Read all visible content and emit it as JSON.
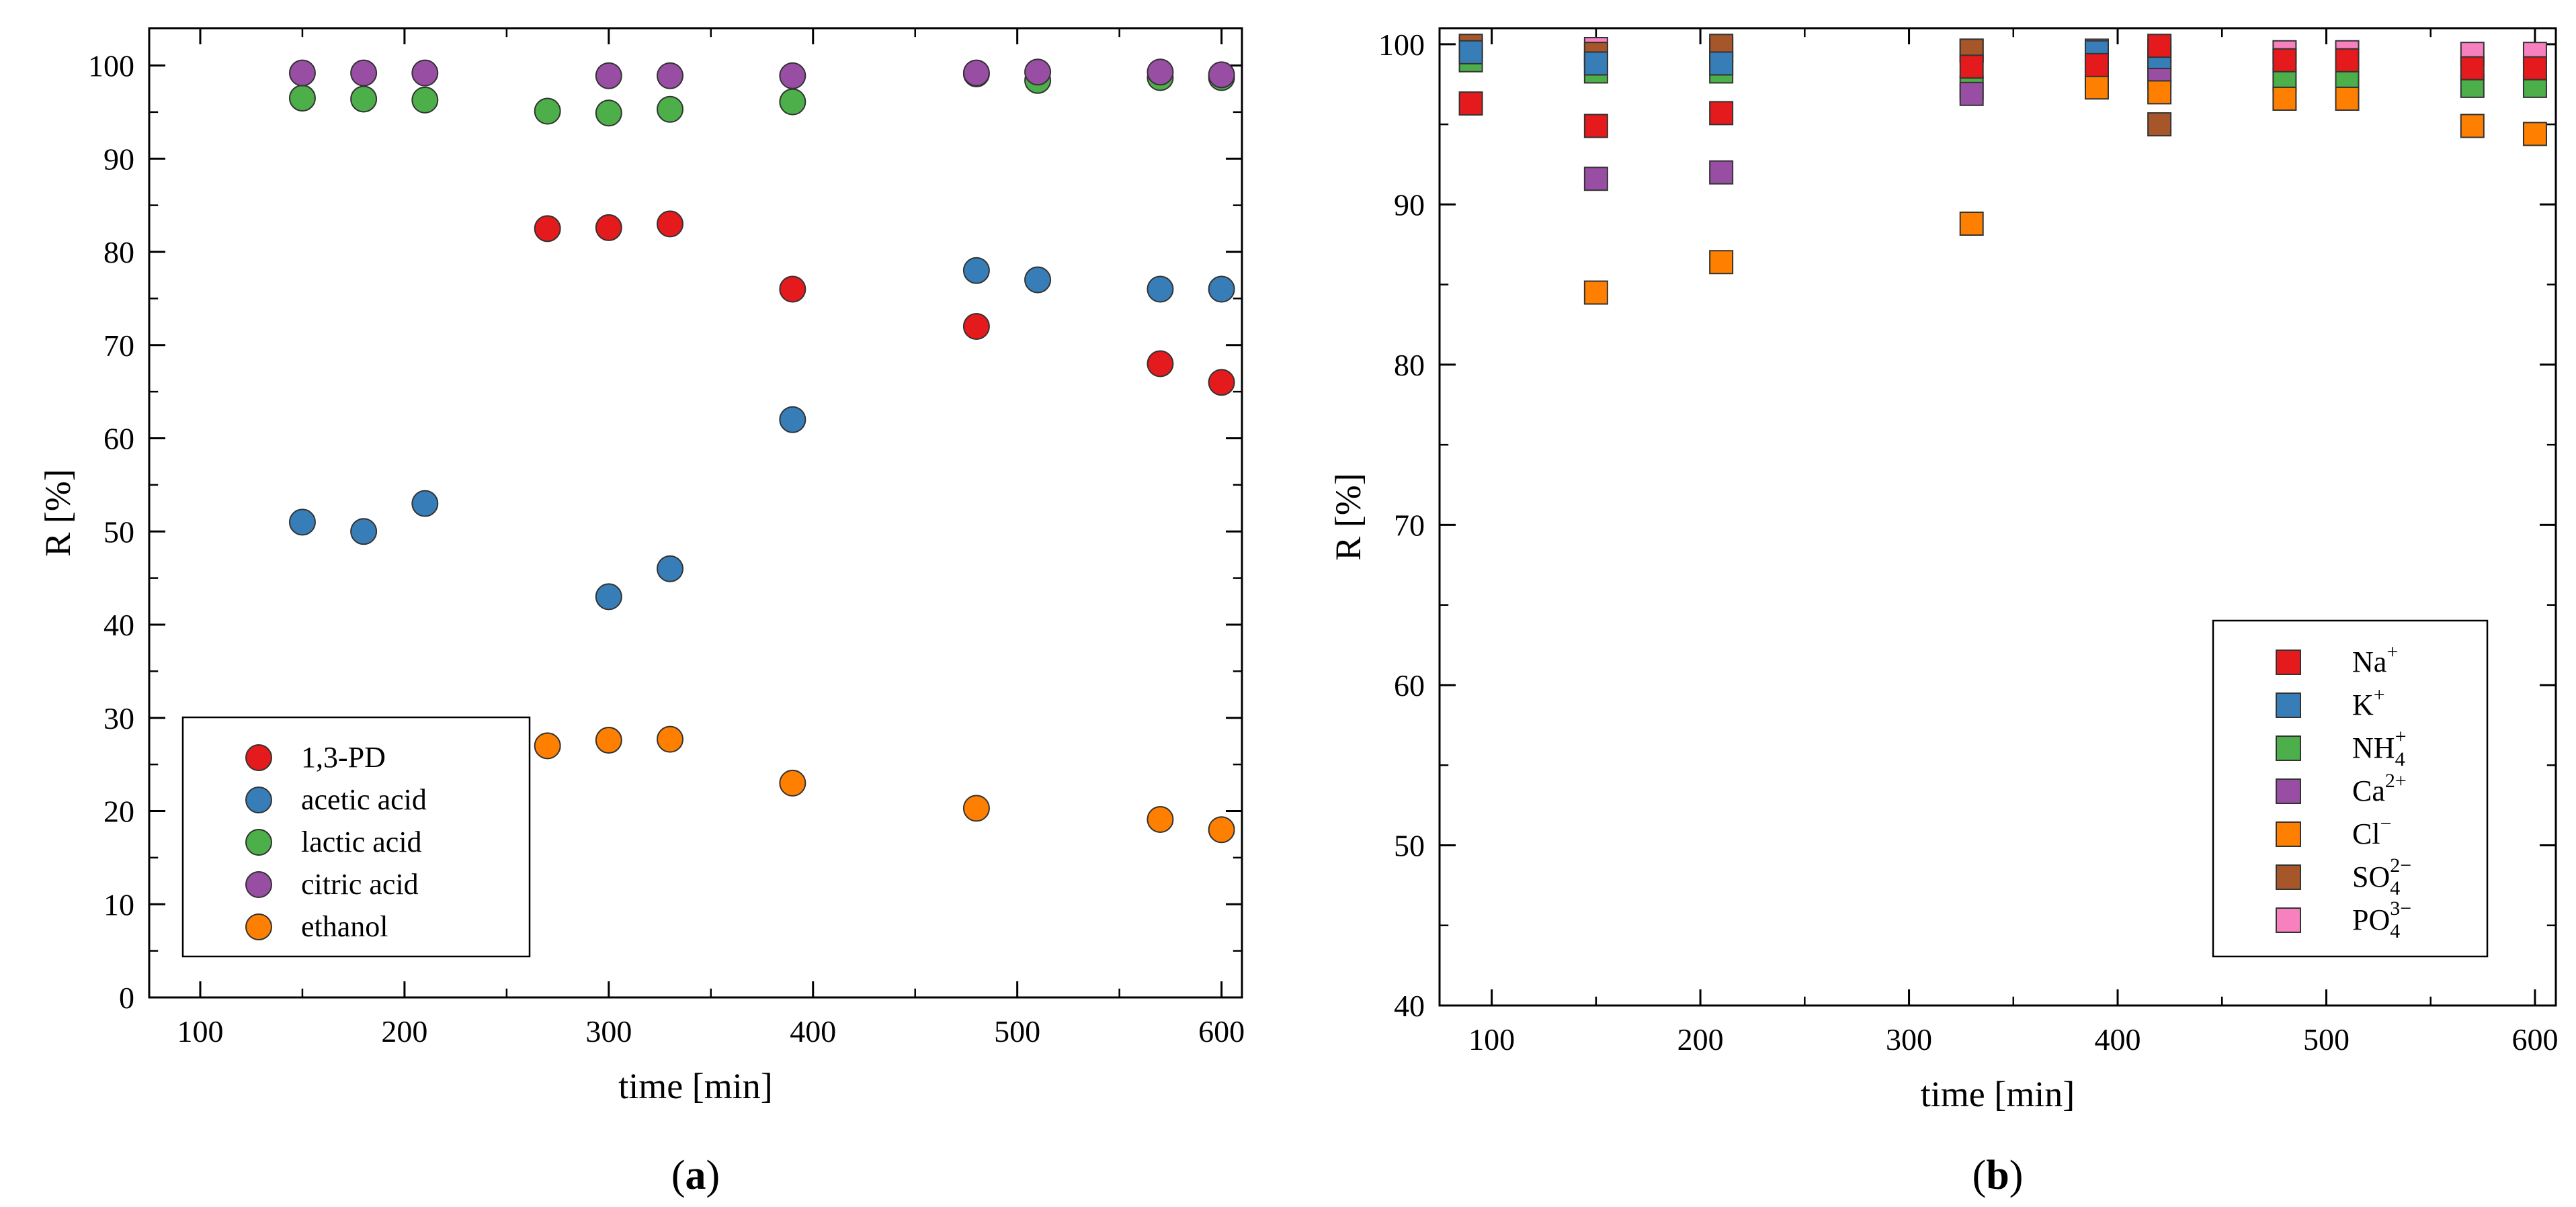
{
  "chart_data": [
    {
      "type": "scatter",
      "panel_label": "(a)",
      "panel_letter": "a",
      "xlabel": "time [min]",
      "ylabel": "R [%]",
      "xlim": [
        75,
        610
      ],
      "ylim": [
        0,
        104
      ],
      "xticks": [
        100,
        200,
        300,
        400,
        500,
        600
      ],
      "yticks": [
        0,
        10,
        20,
        30,
        40,
        50,
        60,
        70,
        80,
        90,
        100
      ],
      "marker": "circle",
      "legend_position": "lower-left",
      "series": [
        {
          "name": "1,3-PD",
          "color": "#e41a1c",
          "x": [
            270,
            300,
            330,
            390,
            480,
            570,
            600
          ],
          "y": [
            82.5,
            82.6,
            83,
            76,
            72,
            68,
            66
          ]
        },
        {
          "name": "acetic acid",
          "color": "#377eb8",
          "x": [
            150,
            180,
            210,
            300,
            330,
            390,
            480,
            510,
            570,
            600
          ],
          "y": [
            51,
            50,
            53,
            43,
            46,
            62,
            78,
            77,
            76,
            76
          ]
        },
        {
          "name": "lactic acid",
          "color": "#4daf4a",
          "x": [
            150,
            180,
            210,
            270,
            300,
            330,
            390,
            480,
            510,
            570,
            600
          ],
          "y": [
            96.5,
            96.4,
            96.3,
            95.1,
            94.9,
            95.3,
            96.1,
            99.1,
            98.4,
            98.7,
            98.7
          ]
        },
        {
          "name": "citric acid",
          "color": "#984ea3",
          "x": [
            150,
            180,
            210,
            300,
            330,
            390,
            480,
            510,
            570,
            600
          ],
          "y": [
            99.2,
            99.2,
            99.2,
            98.9,
            98.9,
            98.9,
            99.2,
            99.3,
            99.3,
            99
          ]
        },
        {
          "name": "ethanol",
          "color": "#ff7f00",
          "x": [
            270,
            300,
            330,
            390,
            480,
            570,
            600
          ],
          "y": [
            27,
            27.6,
            27.7,
            23,
            20.3,
            19.1,
            18
          ]
        }
      ]
    },
    {
      "type": "scatter",
      "panel_label": "(b)",
      "panel_letter": "b",
      "xlabel": "time [min]",
      "ylabel": "R [%]",
      "xlim": [
        75,
        610
      ],
      "ylim": [
        40,
        101
      ],
      "xticks": [
        100,
        200,
        300,
        400,
        500,
        600
      ],
      "yticks": [
        40,
        50,
        60,
        70,
        80,
        90,
        100
      ],
      "marker": "square",
      "legend_position": "lower-right",
      "series": [
        {
          "name": "PO",
          "sub": "4",
          "sup": "3−",
          "color": "#f781bf",
          "x": [
            90,
            150,
            210,
            330,
            390,
            420,
            480,
            510,
            570,
            600
          ],
          "y": [
            99.7,
            99.7,
            99.6,
            99.6,
            99.6,
            99.6,
            99.5,
            99.5,
            99.4,
            99.4
          ]
        },
        {
          "name": "SO",
          "sub": "4",
          "sup": "2−",
          "color": "#a65628",
          "x": [
            90,
            150,
            210,
            330,
            420
          ],
          "y": [
            99.9,
            99.4,
            99.9,
            99.6,
            95
          ]
        },
        {
          "name": "NH",
          "sub": "4",
          "sup": "+",
          "color": "#4daf4a",
          "x": [
            90,
            150,
            210,
            330,
            390,
            420,
            480,
            510,
            570,
            600
          ],
          "y": [
            99,
            98.3,
            98.3,
            97.3,
            98.2,
            98.3,
            97.8,
            98,
            97.4,
            97.4
          ]
        },
        {
          "name": "Ca",
          "sub": "",
          "sup": "2+",
          "color": "#984ea3",
          "x": [
            150,
            210,
            330,
            390,
            420
          ],
          "y": [
            91.6,
            92,
            96.9,
            97.9,
            97.9
          ]
        },
        {
          "name": "K",
          "sub": "",
          "sup": "+",
          "color": "#377eb8",
          "x": [
            90,
            150,
            210,
            390,
            420
          ],
          "y": [
            99.5,
            98.8,
            98.8,
            99.5,
            99.2
          ]
        },
        {
          "name": "Cl",
          "sub": "",
          "sup": "−",
          "color": "#ff7f00",
          "x": [
            150,
            210,
            330,
            390,
            420,
            480,
            510,
            570,
            600
          ],
          "y": [
            84.5,
            86.4,
            88.8,
            97.3,
            97,
            96.6,
            96.6,
            94.9,
            94.4
          ]
        },
        {
          "name": "Na",
          "sub": "",
          "sup": "+",
          "color": "#e41a1c",
          "x": [
            90,
            150,
            210,
            330,
            390,
            420,
            480,
            510,
            570,
            600
          ],
          "y": [
            96.3,
            94.9,
            95.7,
            98.6,
            98.7,
            99.9,
            99,
            99,
            98.5,
            98.5
          ]
        }
      ],
      "legend_order": [
        "Na",
        "K",
        "NH",
        "Ca",
        "Cl",
        "SO",
        "PO"
      ]
    }
  ]
}
